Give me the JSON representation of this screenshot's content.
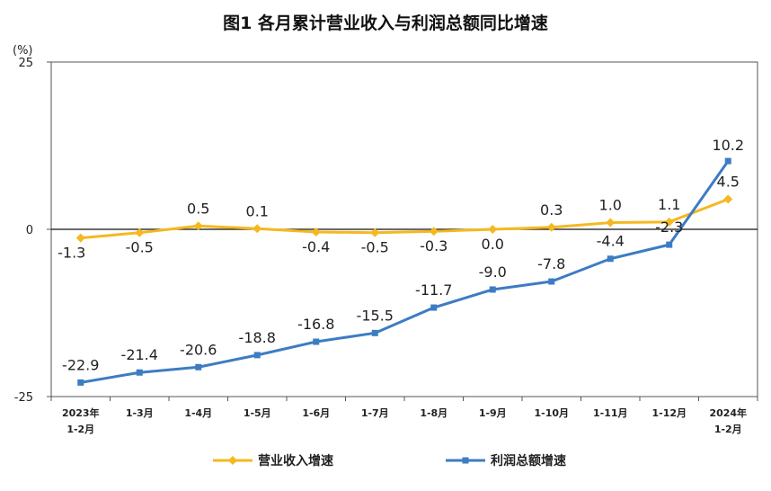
{
  "chart_data": {
    "type": "line",
    "title": "图1  各月累计营业收入与利润总额同比增速",
    "unit_label": "(%)",
    "ylim": [
      -25,
      25
    ],
    "yticks": [
      25,
      0,
      -25
    ],
    "categories": [
      [
        "2023年",
        "1-2月"
      ],
      [
        "1-3月"
      ],
      [
        "1-4月"
      ],
      [
        "1-5月"
      ],
      [
        "1-6月"
      ],
      [
        "1-7月"
      ],
      [
        "1-8月"
      ],
      [
        "1-9月"
      ],
      [
        "1-10月"
      ],
      [
        "1-11月"
      ],
      [
        "1-12月"
      ],
      [
        "2024年",
        "1-2月"
      ]
    ],
    "series": [
      {
        "name": "营业收入增速",
        "color": "#F5B820",
        "marker": "diamond",
        "values": [
          -1.3,
          -0.5,
          0.5,
          0.1,
          -0.4,
          -0.5,
          -0.3,
          0.0,
          0.3,
          1.0,
          1.1,
          4.5
        ],
        "labels": [
          "-1.3",
          "-0.5",
          "0.5",
          "0.1",
          "-0.4",
          "-0.5",
          "-0.3",
          "0.0",
          "0.3",
          "1.0",
          "1.1",
          "4.5"
        ]
      },
      {
        "name": "利润总额增速",
        "color": "#3D7CC2",
        "marker": "square",
        "values": [
          -22.9,
          -21.4,
          -20.6,
          -18.8,
          -16.8,
          -15.5,
          -11.7,
          -9.0,
          -7.8,
          -4.4,
          -2.3,
          10.2
        ],
        "labels": [
          "-22.9",
          "-21.4",
          "-20.6",
          "-18.8",
          "-16.8",
          "-15.5",
          "-11.7",
          "-9.0",
          "-7.8",
          "-4.4",
          "-2.3",
          "10.2"
        ]
      }
    ],
    "grid": false,
    "legend_position": "bottom"
  }
}
